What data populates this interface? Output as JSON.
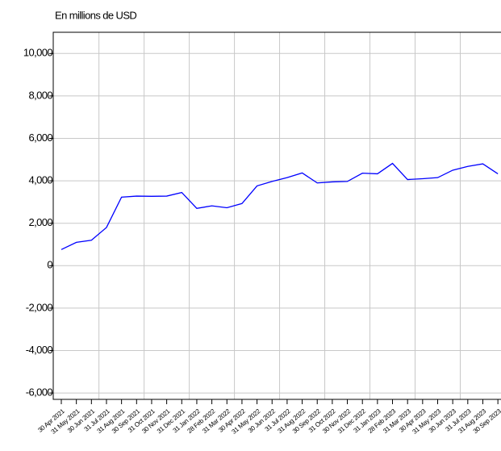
{
  "chart_data": {
    "type": "line",
    "title": "En millions de USD",
    "categories": [
      "30 Apr 2021",
      "31 May 2021",
      "30 Jun 2021",
      "31 Jul 2021",
      "31 Aug 2021",
      "30 Sep 2021",
      "31 Oct 2021",
      "30 Nov 2021",
      "31 Dec 2021",
      "31 Jan 2022",
      "28 Feb 2022",
      "31 Mar 2022",
      "30 Apr 2022",
      "31 May 2022",
      "30 Jun 2022",
      "31 Jul 2022",
      "31 Aug 2022",
      "30 Sep 2022",
      "31 Oct 2022",
      "30 Nov 2022",
      "31 Dec 2022",
      "31 Jan 2023",
      "28 Feb 2023",
      "31 Mar 2023",
      "30 Apr 2023",
      "31 May 2023",
      "30 Jun 2023",
      "31 Jul 2023",
      "31 Aug 2023",
      "30 Sep 2023"
    ],
    "series": [
      {
        "color": "#0000ff",
        "values": [
          760,
          1100,
          1200,
          1800,
          3230,
          3280,
          3270,
          3280,
          3450,
          2700,
          2820,
          2730,
          2930,
          3760,
          3970,
          4150,
          4370,
          3900,
          3950,
          3970,
          4360,
          4330,
          4820,
          4060,
          4100,
          4150,
          4500,
          4680,
          4800,
          4330
        ]
      }
    ],
    "ylim": [
      -6300,
      11000
    ],
    "yticks": [
      {
        "value": -6000,
        "label": "-6,000"
      },
      {
        "value": -4000,
        "label": "-4,000"
      },
      {
        "value": -2000,
        "label": "-2,000"
      },
      0,
      {
        "value": 2000,
        "label": "2,000"
      },
      {
        "value": 4000,
        "label": "4,000"
      },
      {
        "value": 6000,
        "label": "6,000"
      },
      {
        "value": 8000,
        "label": "8,000"
      },
      {
        "value": 10000,
        "label": "10,000"
      }
    ],
    "grid": true
  }
}
